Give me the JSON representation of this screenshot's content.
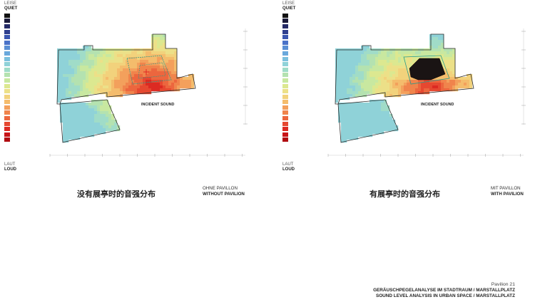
{
  "scale": {
    "quiet_de": "LEISE",
    "quiet_en": "QUIET",
    "loud_de": "LAUT",
    "loud_en": "LOUD"
  },
  "legend_colors": [
    "#111111",
    "#1b1b3a",
    "#242a66",
    "#2f3f8e",
    "#3a56b0",
    "#4a72c8",
    "#5a8fd4",
    "#6aa8dc",
    "#7cc0de",
    "#8fd2d8",
    "#a0dcc8",
    "#b4e2b0",
    "#c8e8a0",
    "#dce890",
    "#ece088",
    "#f2d27c",
    "#f4bc6c",
    "#f3a05c",
    "#f0844c",
    "#ec663e",
    "#e64830",
    "#dc2a22",
    "#c81418",
    "#b00a10"
  ],
  "panels": [
    {
      "id": "without",
      "incident_label": "INCIDENT SOUND",
      "chinese_title": "没有展亭时的音强分布",
      "label_de": "OHNE PAVILLON",
      "label_en": "WITHOUT PAVILION"
    },
    {
      "id": "with",
      "incident_label": "INCIDENT SOUND",
      "chinese_title": "有展亭时的音强分布",
      "label_de": "MIT PAVILLON",
      "label_en": "WITH PAVILION"
    }
  ],
  "footer": {
    "page": "Pavilion 21",
    "title_de": "GERÄUSCHPEGELANALYSE IM STADTRAUM / MARSTALLPLATZ",
    "title_en": "SOUND LEVEL ANALYSIS IN URBAN SPACE / MARSTALLPLATZ"
  },
  "icons": {
    "source_marker": "red-cross-icon",
    "pavilion_shape": "pavilion-icon"
  }
}
